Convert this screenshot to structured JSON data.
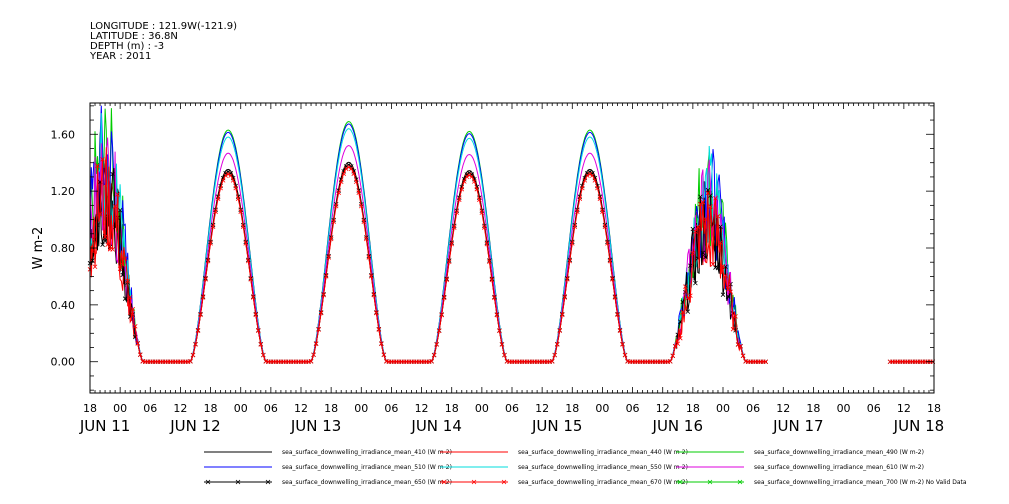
{
  "header": {
    "longitude": "LONGITUDE : 121.9W(-121.9)",
    "latitude": "LATITUDE : 36.8N",
    "depth": "DEPTH (m) : -3",
    "year": "YEAR : 2011"
  },
  "chart_data": {
    "type": "line",
    "ylabel": "W m-2",
    "ylim": [
      -0.22,
      1.82
    ],
    "yticks": [
      0.0,
      0.4,
      0.8,
      1.2,
      1.6
    ],
    "ytick_labels": [
      "0.00",
      "0.40",
      "0.80",
      "1.20",
      "1.60"
    ],
    "xlim": [
      0,
      168
    ],
    "xticks_hours": [
      0,
      6,
      12,
      18,
      24,
      30,
      36,
      42,
      48,
      54,
      60,
      66,
      72,
      78,
      84,
      90,
      96,
      102,
      108,
      114,
      120,
      126,
      132,
      138,
      144,
      150,
      156,
      162,
      168
    ],
    "xtick_labels": [
      "18",
      "00",
      "06",
      "12",
      "18",
      "00",
      "06",
      "12",
      "18",
      "00",
      "06",
      "12",
      "18",
      "00",
      "06",
      "12",
      "18",
      "00",
      "06",
      "12",
      "18",
      "00",
      "06",
      "12",
      "18",
      "00",
      "06",
      "12",
      "18"
    ],
    "date_labels": [
      {
        "label": "JUN 11",
        "hour": 3
      },
      {
        "label": "JUN 12",
        "hour": 21
      },
      {
        "label": "JUN 13",
        "hour": 45
      },
      {
        "label": "JUN 14",
        "hour": 69
      },
      {
        "label": "JUN 15",
        "hour": 93
      },
      {
        "label": "JUN 16",
        "hour": 117
      },
      {
        "label": "JUN 17",
        "hour": 141
      },
      {
        "label": "JUN 18",
        "hour": 165
      }
    ],
    "x_start": "JUN 10 18:00",
    "days": [
      {
        "peak_hour": 3.0,
        "peak_top": 1.72,
        "noisy": true
      },
      {
        "peak_hour": 27.5,
        "peak_top": 1.63,
        "noisy": false
      },
      {
        "peak_hour": 51.5,
        "peak_top": 1.69,
        "noisy": false
      },
      {
        "peak_hour": 75.5,
        "peak_top": 1.62,
        "noisy": false
      },
      {
        "peak_hour": 99.5,
        "peak_top": 1.63,
        "noisy": false
      },
      {
        "peak_hour": 123.0,
        "peak_top": 1.45,
        "noisy": true
      }
    ],
    "gap_hours": [
      135.0,
      159.0
    ],
    "series": [
      {
        "name": "sea_surface_downwelling_irradiance_mean_410 (W m-2)",
        "color": "#000000",
        "factor": 0.83,
        "markers": false
      },
      {
        "name": "sea_surface_downwelling_irradiance_mean_440 (W m-2)",
        "color": "#ff0000",
        "factor": 0.82,
        "markers": false
      },
      {
        "name": "sea_surface_downwelling_irradiance_mean_490 (W m-2)",
        "color": "#00cc00",
        "factor": 1.0,
        "markers": false
      },
      {
        "name": "sea_surface_downwelling_irradiance_mean_510 (W m-2)",
        "color": "#0000ff",
        "factor": 0.99,
        "markers": false
      },
      {
        "name": "sea_surface_downwelling_irradiance_mean_550 (W m-2)",
        "color": "#00dddd",
        "factor": 0.97,
        "markers": false
      },
      {
        "name": "sea_surface_downwelling_irradiance_mean_610 (W m-2)",
        "color": "#dd00dd",
        "factor": 0.9,
        "markers": false
      },
      {
        "name": "sea_surface_downwelling_irradiance_mean_650 (W m-2)",
        "color": "#000000",
        "factor": 0.82,
        "markers": true
      },
      {
        "name": "sea_surface_downwelling_irradiance_mean_670 (W m-2)",
        "color": "#ff0000",
        "factor": 0.81,
        "markers": true
      },
      {
        "name": "sea_surface_downwelling_irradiance_mean_700 (W m-2) No Valid Data",
        "color": "#00cc00",
        "factor": 0,
        "markers": true,
        "no_data": true
      }
    ]
  }
}
